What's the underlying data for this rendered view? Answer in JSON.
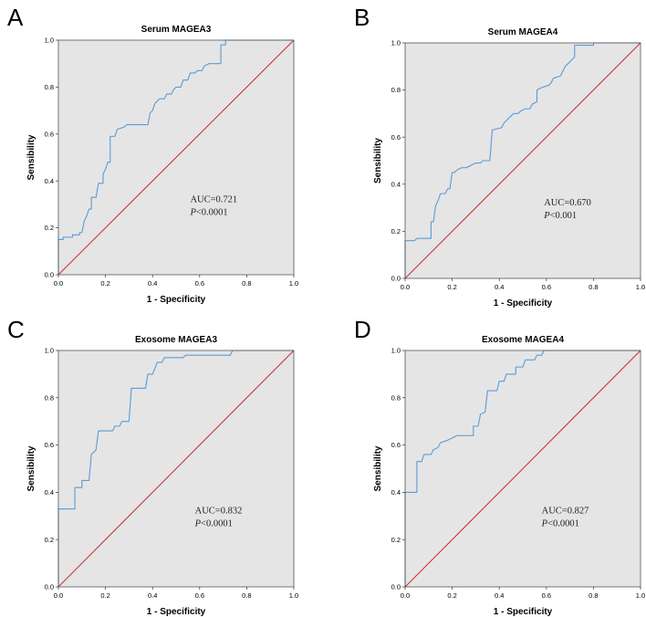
{
  "colors": {
    "plot_background": "#e5e5e5",
    "roc_curve": "#5b9bd5",
    "reference_line": "#cc2b2b",
    "frame": "#555555"
  },
  "chart_data": [
    {
      "panel": "A",
      "type": "line",
      "title": "Serum MAGEA3",
      "xlabel": "1 - Specificity",
      "ylabel": "Sensibility",
      "xlim": [
        0,
        1
      ],
      "ylim": [
        0,
        1
      ],
      "xticks": [
        "0.0",
        "0.2",
        "0.4",
        "0.6",
        "0.8",
        "1.0"
      ],
      "yticks": [
        "0.0",
        "0.2",
        "0.4",
        "0.6",
        "0.8",
        "1.0"
      ],
      "auc_text": "AUC=0.721",
      "p_label": "P",
      "p_value": "<0.0001",
      "series": [
        {
          "name": "ROC",
          "points": [
            [
              0,
              0
            ],
            [
              0,
              0.15
            ],
            [
              0.02,
              0.15
            ],
            [
              0.02,
              0.16
            ],
            [
              0.06,
              0.16
            ],
            [
              0.06,
              0.17
            ],
            [
              0.09,
              0.17
            ],
            [
              0.09,
              0.18
            ],
            [
              0.1,
              0.18
            ],
            [
              0.11,
              0.23
            ],
            [
              0.12,
              0.25
            ],
            [
              0.13,
              0.28
            ],
            [
              0.14,
              0.28
            ],
            [
              0.14,
              0.33
            ],
            [
              0.16,
              0.33
            ],
            [
              0.17,
              0.39
            ],
            [
              0.19,
              0.39
            ],
            [
              0.19,
              0.43
            ],
            [
              0.2,
              0.45
            ],
            [
              0.21,
              0.48
            ],
            [
              0.22,
              0.48
            ],
            [
              0.22,
              0.59
            ],
            [
              0.24,
              0.59
            ],
            [
              0.25,
              0.62
            ],
            [
              0.28,
              0.63
            ],
            [
              0.29,
              0.64
            ],
            [
              0.38,
              0.64
            ],
            [
              0.39,
              0.69
            ],
            [
              0.4,
              0.7
            ],
            [
              0.41,
              0.73
            ],
            [
              0.42,
              0.74
            ],
            [
              0.43,
              0.75
            ],
            [
              0.45,
              0.75
            ],
            [
              0.46,
              0.77
            ],
            [
              0.48,
              0.77
            ],
            [
              0.49,
              0.79
            ],
            [
              0.5,
              0.8
            ],
            [
              0.52,
              0.8
            ],
            [
              0.53,
              0.83
            ],
            [
              0.55,
              0.83
            ],
            [
              0.56,
              0.86
            ],
            [
              0.58,
              0.86
            ],
            [
              0.59,
              0.87
            ],
            [
              0.61,
              0.87
            ],
            [
              0.62,
              0.89
            ],
            [
              0.64,
              0.9
            ],
            [
              0.69,
              0.9
            ],
            [
              0.69,
              0.98
            ],
            [
              0.71,
              0.98
            ],
            [
              0.71,
              1
            ],
            [
              1,
              1
            ]
          ]
        },
        {
          "name": "Reference",
          "points": [
            [
              0,
              0
            ],
            [
              1,
              1
            ]
          ]
        }
      ]
    },
    {
      "panel": "B",
      "type": "line",
      "title": "Serum MAGEA4",
      "xlabel": "1 - Specificity",
      "ylabel": "Sensibility",
      "xlim": [
        0,
        1
      ],
      "ylim": [
        0,
        1
      ],
      "xticks": [
        "0.0",
        "0.2",
        "0.4",
        "0.6",
        "0.8",
        "1.0"
      ],
      "yticks": [
        "0.0",
        "0.2",
        "0.4",
        "0.6",
        "0.8",
        "1.0"
      ],
      "auc_text": "AUC=0.670",
      "p_label": "P",
      "p_value": "<0.001",
      "series": [
        {
          "name": "ROC",
          "points": [
            [
              0,
              0
            ],
            [
              0,
              0.16
            ],
            [
              0.04,
              0.16
            ],
            [
              0.05,
              0.17
            ],
            [
              0.11,
              0.17
            ],
            [
              0.11,
              0.24
            ],
            [
              0.12,
              0.24
            ],
            [
              0.13,
              0.31
            ],
            [
              0.14,
              0.33
            ],
            [
              0.15,
              0.36
            ],
            [
              0.17,
              0.36
            ],
            [
              0.18,
              0.38
            ],
            [
              0.19,
              0.38
            ],
            [
              0.2,
              0.45
            ],
            [
              0.21,
              0.45
            ],
            [
              0.22,
              0.46
            ],
            [
              0.24,
              0.47
            ],
            [
              0.26,
              0.47
            ],
            [
              0.28,
              0.48
            ],
            [
              0.3,
              0.49
            ],
            [
              0.32,
              0.49
            ],
            [
              0.33,
              0.5
            ],
            [
              0.36,
              0.5
            ],
            [
              0.37,
              0.63
            ],
            [
              0.41,
              0.64
            ],
            [
              0.42,
              0.66
            ],
            [
              0.44,
              0.68
            ],
            [
              0.45,
              0.69
            ],
            [
              0.46,
              0.7
            ],
            [
              0.48,
              0.7
            ],
            [
              0.49,
              0.71
            ],
            [
              0.51,
              0.72
            ],
            [
              0.53,
              0.72
            ],
            [
              0.54,
              0.74
            ],
            [
              0.56,
              0.75
            ],
            [
              0.56,
              0.8
            ],
            [
              0.58,
              0.81
            ],
            [
              0.61,
              0.82
            ],
            [
              0.62,
              0.83
            ],
            [
              0.63,
              0.85
            ],
            [
              0.66,
              0.86
            ],
            [
              0.67,
              0.88
            ],
            [
              0.68,
              0.9
            ],
            [
              0.7,
              0.92
            ],
            [
              0.72,
              0.94
            ],
            [
              0.72,
              0.99
            ],
            [
              0.8,
              0.99
            ],
            [
              0.8,
              1
            ],
            [
              1,
              1
            ]
          ]
        },
        {
          "name": "Reference",
          "points": [
            [
              0,
              0
            ],
            [
              1,
              1
            ]
          ]
        }
      ]
    },
    {
      "panel": "C",
      "type": "line",
      "title": "Exosome MAGEA3",
      "xlabel": "1 - Specificity",
      "ylabel": "Sensibility",
      "xlim": [
        0,
        1
      ],
      "ylim": [
        0,
        1
      ],
      "xticks": [
        "0.0",
        "0.2",
        "0.4",
        "0.6",
        "0.8",
        "1.0"
      ],
      "yticks": [
        "0.0",
        "0.2",
        "0.4",
        "0.6",
        "0.8",
        "1.0"
      ],
      "auc_text": "AUC=0.832",
      "p_label": "P",
      "p_value": "<0.0001",
      "series": [
        {
          "name": "ROC",
          "points": [
            [
              0,
              0
            ],
            [
              0,
              0.33
            ],
            [
              0.07,
              0.33
            ],
            [
              0.07,
              0.42
            ],
            [
              0.1,
              0.42
            ],
            [
              0.1,
              0.45
            ],
            [
              0.13,
              0.45
            ],
            [
              0.14,
              0.56
            ],
            [
              0.16,
              0.58
            ],
            [
              0.17,
              0.66
            ],
            [
              0.23,
              0.66
            ],
            [
              0.24,
              0.68
            ],
            [
              0.26,
              0.68
            ],
            [
              0.27,
              0.7
            ],
            [
              0.3,
              0.7
            ],
            [
              0.31,
              0.84
            ],
            [
              0.37,
              0.84
            ],
            [
              0.38,
              0.9
            ],
            [
              0.4,
              0.9
            ],
            [
              0.42,
              0.95
            ],
            [
              0.44,
              0.95
            ],
            [
              0.45,
              0.97
            ],
            [
              0.53,
              0.97
            ],
            [
              0.54,
              0.98
            ],
            [
              0.73,
              0.98
            ],
            [
              0.74,
              1
            ],
            [
              1,
              1
            ]
          ]
        },
        {
          "name": "Reference",
          "points": [
            [
              0,
              0
            ],
            [
              1,
              1
            ]
          ]
        }
      ]
    },
    {
      "panel": "D",
      "type": "line",
      "title": "Exosome MAGEA4",
      "xlabel": "1 - Specificity",
      "ylabel": "Sensibility",
      "xlim": [
        0,
        1
      ],
      "ylim": [
        0,
        1
      ],
      "xticks": [
        "0.0",
        "0.2",
        "0.4",
        "0.6",
        "0.8",
        "1.0"
      ],
      "yticks": [
        "0.0",
        "0.2",
        "0.4",
        "0.6",
        "0.8",
        "1.0"
      ],
      "auc_text": "AUC=0.827",
      "p_label": "P",
      "p_value": "<0.0001",
      "series": [
        {
          "name": "ROC",
          "points": [
            [
              0,
              0
            ],
            [
              0,
              0.4
            ],
            [
              0.05,
              0.4
            ],
            [
              0.05,
              0.53
            ],
            [
              0.07,
              0.53
            ],
            [
              0.08,
              0.56
            ],
            [
              0.11,
              0.56
            ],
            [
              0.12,
              0.58
            ],
            [
              0.14,
              0.59
            ],
            [
              0.15,
              0.61
            ],
            [
              0.18,
              0.62
            ],
            [
              0.2,
              0.63
            ],
            [
              0.22,
              0.64
            ],
            [
              0.29,
              0.64
            ],
            [
              0.29,
              0.68
            ],
            [
              0.31,
              0.68
            ],
            [
              0.32,
              0.73
            ],
            [
              0.34,
              0.74
            ],
            [
              0.35,
              0.83
            ],
            [
              0.39,
              0.83
            ],
            [
              0.4,
              0.87
            ],
            [
              0.42,
              0.87
            ],
            [
              0.43,
              0.9
            ],
            [
              0.47,
              0.9
            ],
            [
              0.47,
              0.93
            ],
            [
              0.5,
              0.93
            ],
            [
              0.51,
              0.96
            ],
            [
              0.55,
              0.96
            ],
            [
              0.56,
              0.98
            ],
            [
              0.58,
              0.98
            ],
            [
              0.59,
              1
            ],
            [
              1,
              1
            ]
          ]
        },
        {
          "name": "Reference",
          "points": [
            [
              0,
              0
            ],
            [
              1,
              1
            ]
          ]
        }
      ]
    }
  ]
}
